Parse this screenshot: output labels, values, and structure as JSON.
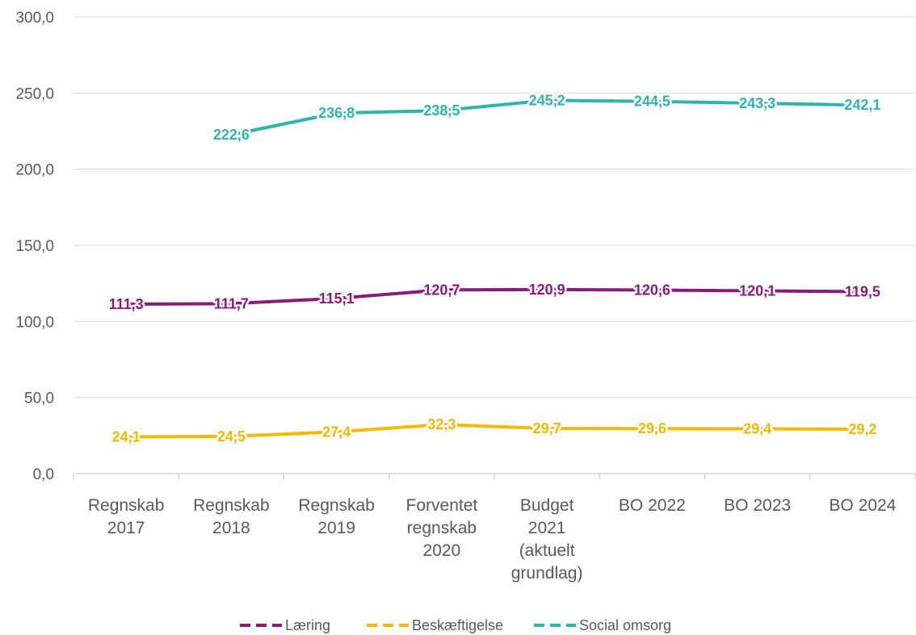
{
  "chart_data": {
    "type": "line",
    "categories": [
      [
        "Regnskab",
        "2017"
      ],
      [
        "Regnskab",
        "2018"
      ],
      [
        "Regnskab",
        "2019"
      ],
      [
        "Forventet",
        "regnskab",
        "2020"
      ],
      [
        "Budget",
        "2021",
        "(aktuelt",
        "grundlag)"
      ],
      [
        "BO 2022"
      ],
      [
        "BO 2023"
      ],
      [
        "BO 2024"
      ]
    ],
    "ylim": [
      0,
      300
    ],
    "yticks": [
      {
        "value": 0,
        "label": "0,0"
      },
      {
        "value": 50,
        "label": "50,0"
      },
      {
        "value": 100,
        "label": "100,0"
      },
      {
        "value": 150,
        "label": "150,0"
      },
      {
        "value": 200,
        "label": "200,0"
      },
      {
        "value": 250,
        "label": "250,0"
      },
      {
        "value": 300,
        "label": "300,0"
      }
    ],
    "grid": true,
    "legend_position": "bottom",
    "series": [
      {
        "name": "Læring",
        "color": "#8B1A7A",
        "values": [
          111.3,
          111.7,
          115.1,
          120.7,
          120.9,
          120.6,
          120.1,
          119.5
        ],
        "labels": [
          "111,3",
          "111,7",
          "115,1",
          "120,7",
          "120,9",
          "120,6",
          "120,1",
          "119,5"
        ]
      },
      {
        "name": "Beskæftigelse",
        "color": "#F5B800",
        "values": [
          24.1,
          24.5,
          27.4,
          32.3,
          29.7,
          29.6,
          29.4,
          29.2
        ],
        "labels": [
          "24,1",
          "24,5",
          "27,4",
          "32,3",
          "29,7",
          "29,6",
          "29,4",
          "29,2"
        ]
      },
      {
        "name": "Social omsorg",
        "color": "#2EB3AE",
        "values": [
          null,
          222.6,
          236.8,
          238.5,
          245.2,
          244.5,
          243.3,
          242.1
        ],
        "labels": [
          "",
          "222,6",
          "236,8",
          "238,5",
          "245,2",
          "244,5",
          "243,3",
          "242,1"
        ]
      }
    ]
  }
}
